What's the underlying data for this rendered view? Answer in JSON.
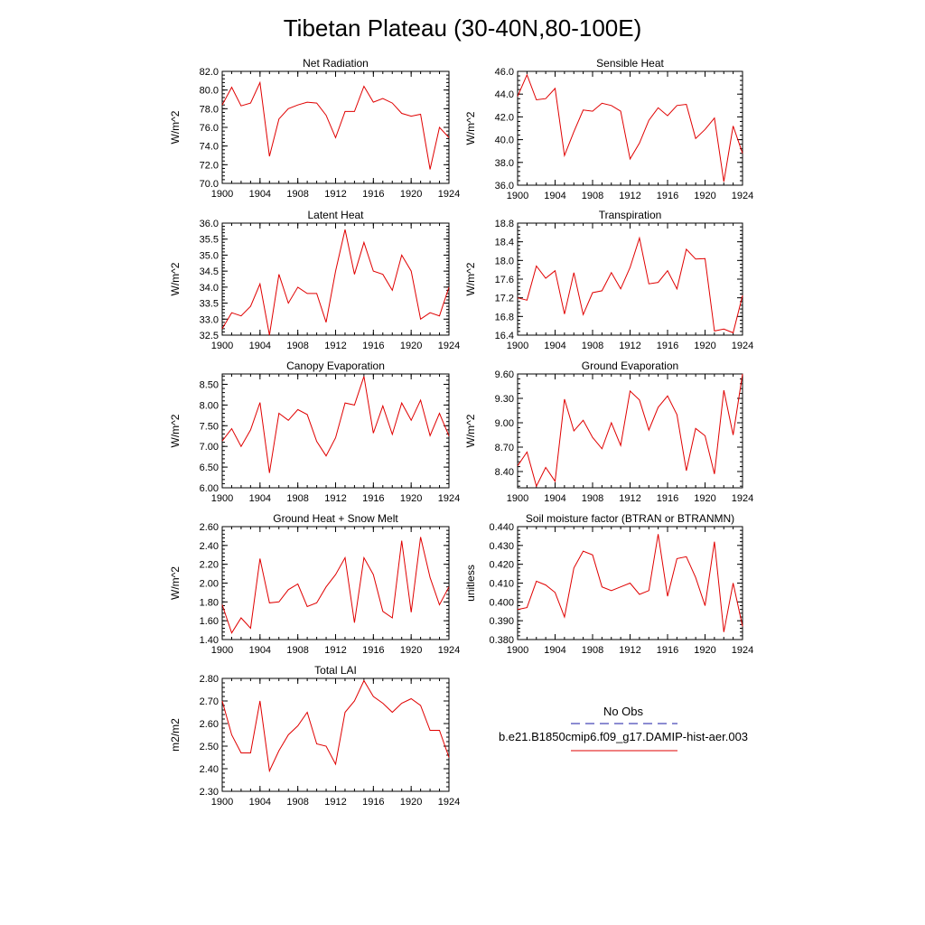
{
  "title": "Tibetan Plateau (30-40N,80-100E)",
  "legend": {
    "items": [
      {
        "label": "No Obs",
        "color": "#1a1aa6",
        "dash": true
      },
      {
        "label": "b.e21.B1850cmip6.f09_g17.DAMIP-hist-aer.003",
        "color": "#e00000",
        "dash": false
      }
    ]
  },
  "chart_data": [
    {
      "type": "line",
      "title": "Net Radiation",
      "ylabel": "W/m^2",
      "x": [
        1900,
        1901,
        1902,
        1903,
        1904,
        1905,
        1906,
        1907,
        1908,
        1909,
        1910,
        1911,
        1912,
        1913,
        1914,
        1915,
        1916,
        1917,
        1918,
        1919,
        1920,
        1921,
        1922,
        1923,
        1924
      ],
      "xlim": [
        1900,
        1924
      ],
      "xticks": [
        1900,
        1904,
        1908,
        1912,
        1916,
        1920,
        1924
      ],
      "ylim": [
        70,
        82
      ],
      "yticks": [
        "70.0",
        "72.0",
        "74.0",
        "76.0",
        "78.0",
        "80.0",
        "82.0"
      ],
      "series": [
        {
          "color": "#e00000",
          "values": [
            78.4,
            80.3,
            78.3,
            78.6,
            80.8,
            72.9,
            76.9,
            78.0,
            78.4,
            78.7,
            78.6,
            77.3,
            74.9,
            77.7,
            77.7,
            80.4,
            78.7,
            79.1,
            78.6,
            77.5,
            77.2,
            77.4,
            71.5,
            76.0,
            74.9
          ]
        }
      ]
    },
    {
      "type": "line",
      "title": "Sensible Heat",
      "ylabel": "W/m^2",
      "x": [
        1900,
        1901,
        1902,
        1903,
        1904,
        1905,
        1906,
        1907,
        1908,
        1909,
        1910,
        1911,
        1912,
        1913,
        1914,
        1915,
        1916,
        1917,
        1918,
        1919,
        1920,
        1921,
        1922,
        1923,
        1924
      ],
      "xlim": [
        1900,
        1924
      ],
      "xticks": [
        1900,
        1904,
        1908,
        1912,
        1916,
        1920,
        1924
      ],
      "ylim": [
        36,
        46
      ],
      "yticks": [
        "36.0",
        "38.0",
        "40.0",
        "42.0",
        "44.0",
        "46.0"
      ],
      "series": [
        {
          "color": "#e00000",
          "values": [
            43.8,
            45.7,
            43.5,
            43.6,
            44.5,
            38.6,
            40.7,
            42.6,
            42.5,
            43.2,
            43.0,
            42.5,
            38.3,
            39.7,
            41.7,
            42.8,
            42.1,
            43.0,
            43.1,
            40.1,
            40.9,
            41.9,
            36.3,
            41.2,
            38.8
          ]
        }
      ]
    },
    {
      "type": "line",
      "title": "Latent Heat",
      "ylabel": "W/m^2",
      "x": [
        1900,
        1901,
        1902,
        1903,
        1904,
        1905,
        1906,
        1907,
        1908,
        1909,
        1910,
        1911,
        1912,
        1913,
        1914,
        1915,
        1916,
        1917,
        1918,
        1919,
        1920,
        1921,
        1922,
        1923,
        1924
      ],
      "xlim": [
        1900,
        1924
      ],
      "xticks": [
        1900,
        1904,
        1908,
        1912,
        1916,
        1920,
        1924
      ],
      "ylim": [
        32.5,
        36.0
      ],
      "yticks": [
        "32.5",
        "33.0",
        "33.5",
        "34.0",
        "34.5",
        "35.0",
        "35.5",
        "36.0"
      ],
      "series": [
        {
          "color": "#e00000",
          "values": [
            32.7,
            33.2,
            33.1,
            33.4,
            34.1,
            32.5,
            34.4,
            33.5,
            34.0,
            33.8,
            33.8,
            32.9,
            34.5,
            35.8,
            34.4,
            35.4,
            34.5,
            34.4,
            33.9,
            35.0,
            34.5,
            33.0,
            33.2,
            33.1,
            34.0
          ]
        }
      ]
    },
    {
      "type": "line",
      "title": "Transpiration",
      "ylabel": "W/m^2",
      "x": [
        1900,
        1901,
        1902,
        1903,
        1904,
        1905,
        1906,
        1907,
        1908,
        1909,
        1910,
        1911,
        1912,
        1913,
        1914,
        1915,
        1916,
        1917,
        1918,
        1919,
        1920,
        1921,
        1922,
        1923,
        1924
      ],
      "xlim": [
        1900,
        1924
      ],
      "xticks": [
        1900,
        1904,
        1908,
        1912,
        1916,
        1920,
        1924
      ],
      "ylim": [
        16.4,
        18.8
      ],
      "yticks": [
        "16.4",
        "16.8",
        "17.2",
        "17.6",
        "18.0",
        "18.4",
        "18.8"
      ],
      "series": [
        {
          "color": "#e00000",
          "values": [
            17.2,
            17.15,
            17.88,
            17.62,
            17.78,
            16.85,
            17.74,
            16.84,
            17.31,
            17.35,
            17.74,
            17.39,
            17.85,
            18.48,
            17.5,
            17.53,
            17.78,
            17.39,
            18.24,
            18.03,
            18.04,
            16.49,
            16.53,
            16.45,
            17.25
          ]
        }
      ]
    },
    {
      "type": "line",
      "title": "Canopy Evaporation",
      "ylabel": "W/m^2",
      "x": [
        1900,
        1901,
        1902,
        1903,
        1904,
        1905,
        1906,
        1907,
        1908,
        1909,
        1910,
        1911,
        1912,
        1913,
        1914,
        1915,
        1916,
        1917,
        1918,
        1919,
        1920,
        1921,
        1922,
        1923,
        1924
      ],
      "xlim": [
        1900,
        1924
      ],
      "xticks": [
        1900,
        1904,
        1908,
        1912,
        1916,
        1920,
        1924
      ],
      "ylim": [
        6.0,
        8.75
      ],
      "yticks": [
        "6.00",
        "6.50",
        "7.00",
        "7.50",
        "8.00",
        "8.50"
      ],
      "series": [
        {
          "color": "#e00000",
          "values": [
            7.13,
            7.43,
            7.0,
            7.4,
            8.06,
            6.36,
            7.8,
            7.63,
            7.89,
            7.77,
            7.12,
            6.77,
            7.21,
            8.05,
            8.0,
            8.69,
            7.32,
            7.98,
            7.29,
            8.05,
            7.63,
            8.12,
            7.26,
            7.8,
            7.25
          ]
        }
      ]
    },
    {
      "type": "line",
      "title": "Ground Evaporation",
      "ylabel": "W/m^2",
      "x": [
        1900,
        1901,
        1902,
        1903,
        1904,
        1905,
        1906,
        1907,
        1908,
        1909,
        1910,
        1911,
        1912,
        1913,
        1914,
        1915,
        1916,
        1917,
        1918,
        1919,
        1920,
        1921,
        1922,
        1923,
        1924
      ],
      "xlim": [
        1900,
        1924
      ],
      "xticks": [
        1900,
        1904,
        1908,
        1912,
        1916,
        1920,
        1924
      ],
      "ylim": [
        8.2,
        9.6
      ],
      "yticks": [
        "8.40",
        "8.70",
        "9.00",
        "9.30",
        "9.60"
      ],
      "series": [
        {
          "color": "#e00000",
          "values": [
            8.47,
            8.64,
            8.22,
            8.45,
            8.28,
            9.29,
            8.9,
            9.03,
            8.82,
            8.68,
            9.0,
            8.72,
            9.39,
            9.28,
            8.91,
            9.19,
            9.33,
            9.1,
            8.41,
            8.93,
            8.84,
            8.37,
            9.4,
            8.85,
            9.6
          ]
        }
      ]
    },
    {
      "type": "line",
      "title": "Ground Heat + Snow Melt",
      "ylabel": "W/m^2",
      "x": [
        1900,
        1901,
        1902,
        1903,
        1904,
        1905,
        1906,
        1907,
        1908,
        1909,
        1910,
        1911,
        1912,
        1913,
        1914,
        1915,
        1916,
        1917,
        1918,
        1919,
        1920,
        1921,
        1922,
        1923,
        1924
      ],
      "xlim": [
        1900,
        1924
      ],
      "xticks": [
        1900,
        1904,
        1908,
        1912,
        1916,
        1920,
        1924
      ],
      "ylim": [
        1.4,
        2.6
      ],
      "yticks": [
        "1.40",
        "1.60",
        "1.80",
        "2.00",
        "2.20",
        "2.40",
        "2.60"
      ],
      "series": [
        {
          "color": "#e00000",
          "values": [
            1.77,
            1.47,
            1.63,
            1.52,
            2.26,
            1.79,
            1.8,
            1.93,
            1.99,
            1.75,
            1.79,
            1.96,
            2.09,
            2.27,
            1.58,
            2.27,
            2.09,
            1.7,
            1.63,
            2.45,
            1.69,
            2.49,
            2.06,
            1.77,
            1.96
          ]
        }
      ]
    },
    {
      "type": "line",
      "title": "Soil moisture factor (BTRAN or BTRANMN)",
      "ylabel": "unitless",
      "x": [
        1900,
        1901,
        1902,
        1903,
        1904,
        1905,
        1906,
        1907,
        1908,
        1909,
        1910,
        1911,
        1912,
        1913,
        1914,
        1915,
        1916,
        1917,
        1918,
        1919,
        1920,
        1921,
        1922,
        1923,
        1924
      ],
      "xlim": [
        1900,
        1924
      ],
      "xticks": [
        1900,
        1904,
        1908,
        1912,
        1916,
        1920,
        1924
      ],
      "ylim": [
        0.38,
        0.44
      ],
      "yticks": [
        "0.380",
        "0.390",
        "0.400",
        "0.410",
        "0.420",
        "0.430",
        "0.440"
      ],
      "series": [
        {
          "color": "#e00000",
          "values": [
            0.396,
            0.397,
            0.411,
            0.409,
            0.405,
            0.392,
            0.418,
            0.427,
            0.425,
            0.408,
            0.406,
            0.408,
            0.41,
            0.404,
            0.406,
            0.436,
            0.403,
            0.423,
            0.424,
            0.413,
            0.398,
            0.432,
            0.384,
            0.41,
            0.387
          ]
        }
      ]
    },
    {
      "type": "line",
      "title": "Total LAI",
      "ylabel": "m2/m2",
      "x": [
        1900,
        1901,
        1902,
        1903,
        1904,
        1905,
        1906,
        1907,
        1908,
        1909,
        1910,
        1911,
        1912,
        1913,
        1914,
        1915,
        1916,
        1917,
        1918,
        1919,
        1920,
        1921,
        1922,
        1923,
        1924
      ],
      "xlim": [
        1900,
        1924
      ],
      "xticks": [
        1900,
        1904,
        1908,
        1912,
        1916,
        1920,
        1924
      ],
      "ylim": [
        2.3,
        2.8
      ],
      "yticks": [
        "2.30",
        "2.40",
        "2.50",
        "2.60",
        "2.70",
        "2.80"
      ],
      "series": [
        {
          "color": "#e00000",
          "values": [
            2.7,
            2.55,
            2.47,
            2.47,
            2.7,
            2.39,
            2.48,
            2.55,
            2.59,
            2.65,
            2.51,
            2.5,
            2.42,
            2.65,
            2.7,
            2.79,
            2.72,
            2.69,
            2.65,
            2.69,
            2.71,
            2.68,
            2.57,
            2.57,
            2.45
          ]
        }
      ]
    }
  ]
}
